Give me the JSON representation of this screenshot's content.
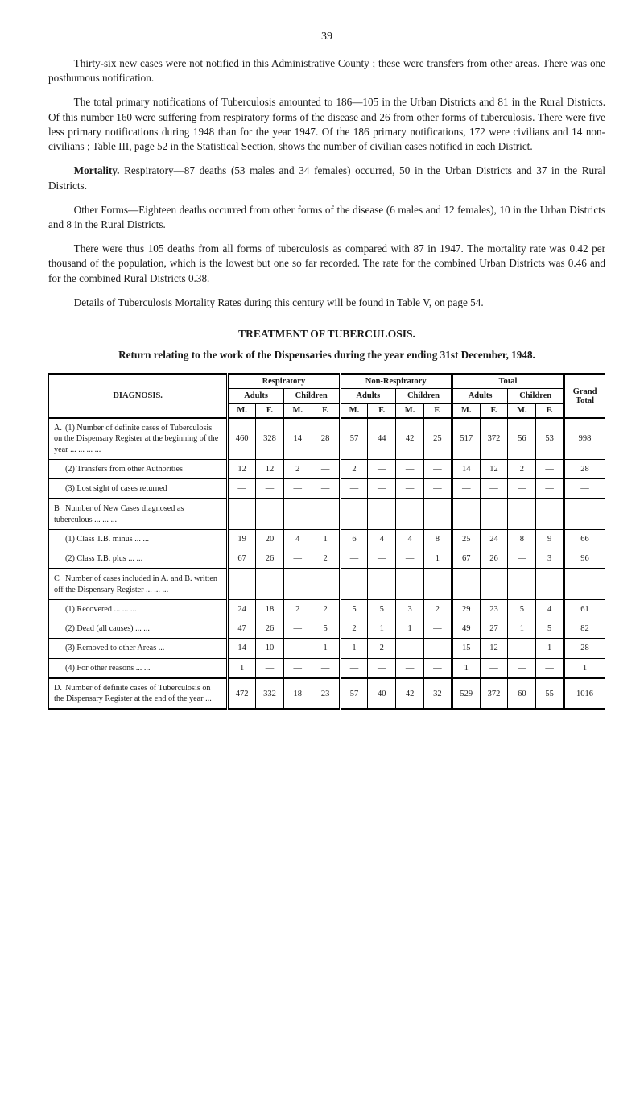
{
  "page_number": "39",
  "paragraphs": {
    "p1": "Thirty-six new cases were not notified in this Administrative County ; these were transfers from other areas. There was one posthumous notification.",
    "p2": "The total primary notifications of Tuberculosis amounted to 186—105 in the Urban Districts and 81 in the Rural Districts. Of this number 160 were suffering from respiratory forms of the disease and 26 from other forms of tuberculosis. There were five less primary notifications during 1948 than for the year 1947. Of the 186 primary notifications, 172 were civilians and 14 non-civilians ; Table III, page 52 in the Statistical Section, shows the number of civilian cases notified in each District.",
    "p3a": "Mortality.",
    "p3b": "  Respiratory—87 deaths (53 males and 34 females) occurred, 50 in the Urban Districts and 37 in the Rural Districts.",
    "p4": "Other Forms—Eighteen deaths occurred from other forms of the disease (6 males and 12 females), 10 in the Urban Districts and 8 in the Rural Districts.",
    "p5": "There were thus 105 deaths from all forms of tuberculosis as compared with 87 in 1947. The mortality rate was 0.42 per thousand of the population, which is the lowest but one so far recorded. The rate for the combined Urban Districts was 0.46 and for the combined Rural Districts 0.38.",
    "p6": "Details of Tuberculosis Mortality Rates during this century will be found in Table V, on page 54."
  },
  "section_title": "TREATMENT OF TUBERCULOSIS.",
  "subtitle": "Return relating to the work of the Dispensaries during the year ending 31st December, 1948.",
  "table": {
    "headers": {
      "diagnosis": "DIAGNOSIS.",
      "respiratory": "Respiratory",
      "non_respiratory": "Non-Respiratory",
      "total": "Total",
      "grand_total": "Grand Total",
      "adults": "Adults",
      "children": "Children",
      "m": "M.",
      "f": "F."
    },
    "rows": [
      {
        "id": "A1",
        "letter": "A.",
        "label": "(1) Number of definite cases of Tuberculosis on the Dispensary Register at the beginning of the year      ...      ...      ...      ...",
        "cells": [
          "460",
          "328",
          "14",
          "28",
          "57",
          "44",
          "42",
          "25",
          "517",
          "372",
          "56",
          "53",
          "998"
        ]
      },
      {
        "id": "A2",
        "letter": "",
        "label": "(2) Transfers from other Authorities",
        "cells": [
          "12",
          "12",
          "2",
          "—",
          "2",
          "—",
          "—",
          "—",
          "14",
          "12",
          "2",
          "—",
          "28"
        ]
      },
      {
        "id": "A3",
        "letter": "",
        "label": "(3) Lost sight of cases returned",
        "cells": [
          "—",
          "—",
          "—",
          "—",
          "—",
          "—",
          "—",
          "—",
          "—",
          "—",
          "—",
          "—",
          "—"
        ]
      },
      {
        "id": "B0",
        "letter": "B",
        "label": "Number of New Cases diagnosed as tuberculous      ...      ...      ...",
        "cells": [
          "",
          "",
          "",
          "",
          "",
          "",
          "",
          "",
          "",
          "",
          "",
          "",
          ""
        ]
      },
      {
        "id": "B1",
        "letter": "",
        "label": "(1) Class T.B. minus      ...      ...",
        "cells": [
          "19",
          "20",
          "4",
          "1",
          "6",
          "4",
          "4",
          "8",
          "25",
          "24",
          "8",
          "9",
          "66"
        ]
      },
      {
        "id": "B2",
        "letter": "",
        "label": "(2) Class T.B. plus         ...      ...",
        "cells": [
          "67",
          "26",
          "—",
          "2",
          "—",
          "—",
          "—",
          "1",
          "67",
          "26",
          "—",
          "3",
          "96"
        ]
      },
      {
        "id": "C0",
        "letter": "C",
        "label": "Number of cases included in A. and B. written off the Dispensary Register ...      ...      ...",
        "cells": [
          "",
          "",
          "",
          "",
          "",
          "",
          "",
          "",
          "",
          "",
          "",
          "",
          ""
        ]
      },
      {
        "id": "C1",
        "letter": "",
        "label": "(1) Recovered         ...      ...      ...",
        "cells": [
          "24",
          "18",
          "2",
          "2",
          "5",
          "5",
          "3",
          "2",
          "29",
          "23",
          "5",
          "4",
          "61"
        ]
      },
      {
        "id": "C2",
        "letter": "",
        "label": "(2) Dead (all causes)      ...      ...",
        "cells": [
          "47",
          "26",
          "—",
          "5",
          "2",
          "1",
          "1",
          "—",
          "49",
          "27",
          "1",
          "5",
          "82"
        ]
      },
      {
        "id": "C3",
        "letter": "",
        "label": "(3) Removed to other Areas    ...",
        "cells": [
          "14",
          "10",
          "—",
          "1",
          "1",
          "2",
          "—",
          "—",
          "15",
          "12",
          "—",
          "1",
          "28"
        ]
      },
      {
        "id": "C4",
        "letter": "",
        "label": "(4) For other reasons      ...      ...",
        "cells": [
          "1",
          "—",
          "—",
          "—",
          "—",
          "—",
          "—",
          "—",
          "1",
          "—",
          "—",
          "—",
          "1"
        ]
      },
      {
        "id": "D",
        "letter": "D.",
        "label": "Number of definite cases of Tuberculosis on the Dispensary Register at the end of the year ...",
        "cells": [
          "472",
          "332",
          "18",
          "23",
          "57",
          "40",
          "42",
          "32",
          "529",
          "372",
          "60",
          "55",
          "1016"
        ]
      }
    ]
  }
}
